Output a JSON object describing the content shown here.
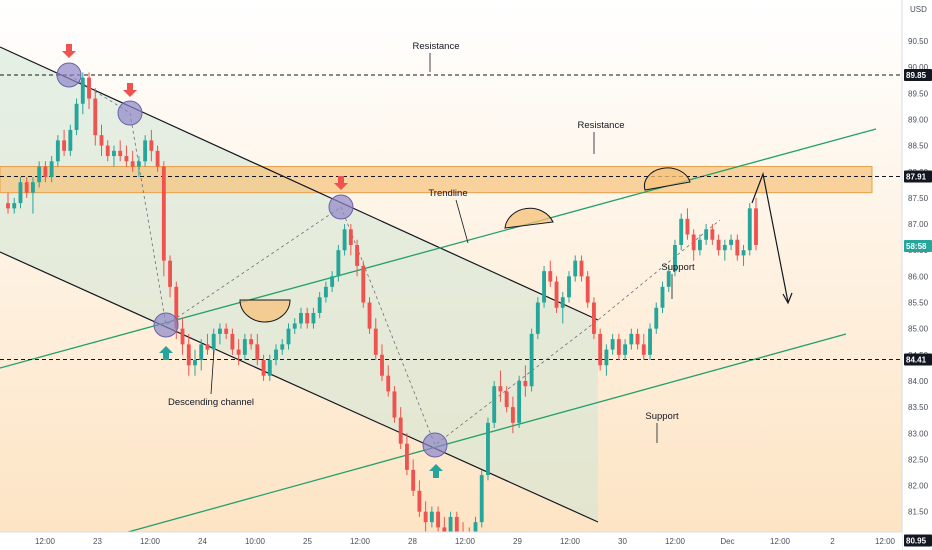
{
  "chart_data": {
    "type": "candlestick",
    "unit": "USD",
    "ylim": [
      78.9,
      91.6
    ],
    "y_ticks": [
      79.0,
      79.5,
      80.0,
      80.5,
      81.0,
      81.5,
      82.0,
      82.5,
      83.0,
      83.5,
      84.0,
      84.5,
      85.0,
      85.5,
      86.0,
      86.5,
      87.0,
      87.5,
      88.0,
      88.5,
      89.0,
      89.5,
      90.0,
      90.5,
      91.0,
      91.5
    ],
    "x_ticks": [
      "12:00",
      "23",
      "12:00",
      "24",
      "10:00",
      "25",
      "12:00",
      "28",
      "12:00",
      "29",
      "12:00",
      "30",
      "12:00",
      "Dec",
      "12:00",
      "2",
      "12:00"
    ],
    "price_labels": [
      {
        "value": 89.85,
        "text": "89.85",
        "color": "#131722"
      },
      {
        "value": 87.91,
        "text": "87.91",
        "color": "#131722"
      },
      {
        "value": 86.58,
        "text": "58:58",
        "color": "#26a69a"
      },
      {
        "value": 84.41,
        "text": "84.41",
        "color": "#131722"
      },
      {
        "value": 80.95,
        "text": "80.95",
        "color": "#131722"
      }
    ],
    "levels": [
      {
        "name": "resistance-upper",
        "value": 89.85,
        "label": "Resistance"
      },
      {
        "name": "resistance-zone",
        "value": 87.91,
        "label": "Resistance",
        "zone": [
          87.6,
          88.1
        ]
      },
      {
        "name": "support-upper",
        "value": 84.41,
        "label": "Support"
      },
      {
        "name": "support-lower",
        "value": 80.95,
        "label": "Support"
      }
    ],
    "annotations": [
      {
        "name": "trendline-label",
        "text": "Trendline"
      },
      {
        "name": "channel-label",
        "text": "Descending channel"
      }
    ],
    "colors": {
      "up": "#26a69a",
      "down": "#ef5350",
      "channel_line": "#131722",
      "trend_line": "#22a06b",
      "zone": "#f5c27a",
      "marker": "#8e86c8"
    },
    "candles": [
      [
        87.4,
        87.6,
        87.2,
        87.3
      ],
      [
        87.3,
        87.5,
        87.2,
        87.4
      ],
      [
        87.4,
        87.9,
        87.3,
        87.8
      ],
      [
        87.8,
        87.9,
        87.5,
        87.6
      ],
      [
        87.6,
        87.9,
        87.2,
        87.8
      ],
      [
        87.8,
        88.2,
        87.7,
        88.1
      ],
      [
        88.1,
        88.2,
        87.8,
        87.9
      ],
      [
        87.9,
        88.3,
        87.8,
        88.2
      ],
      [
        88.2,
        88.7,
        88.1,
        88.6
      ],
      [
        88.6,
        88.8,
        88.3,
        88.4
      ],
      [
        88.4,
        88.9,
        88.3,
        88.8
      ],
      [
        88.8,
        89.4,
        88.7,
        89.3
      ],
      [
        89.3,
        89.9,
        89.1,
        89.8
      ],
      [
        89.8,
        89.9,
        89.2,
        89.4
      ],
      [
        89.4,
        89.6,
        88.5,
        88.7
      ],
      [
        88.7,
        88.9,
        88.3,
        88.5
      ],
      [
        88.5,
        88.6,
        88.2,
        88.3
      ],
      [
        88.3,
        88.5,
        88.1,
        88.4
      ],
      [
        88.4,
        88.6,
        88.2,
        88.3
      ],
      [
        88.3,
        88.5,
        88.1,
        88.2
      ],
      [
        88.2,
        88.4,
        88.0,
        88.1
      ],
      [
        88.1,
        88.3,
        87.9,
        88.2
      ],
      [
        88.2,
        88.7,
        88.1,
        88.6
      ],
      [
        88.6,
        88.8,
        88.2,
        88.4
      ],
      [
        88.4,
        88.5,
        88.0,
        88.1
      ],
      [
        88.1,
        88.2,
        86.0,
        86.3
      ],
      [
        86.3,
        86.4,
        85.6,
        85.8
      ],
      [
        85.8,
        85.9,
        84.8,
        85.0
      ],
      [
        85.0,
        85.2,
        84.5,
        84.7
      ],
      [
        84.7,
        84.9,
        84.1,
        84.3
      ],
      [
        84.3,
        84.6,
        84.1,
        84.4
      ],
      [
        84.4,
        84.8,
        84.2,
        84.7
      ],
      [
        84.7,
        84.9,
        84.5,
        84.6
      ],
      [
        84.6,
        85.0,
        84.5,
        84.9
      ],
      [
        84.9,
        85.1,
        84.7,
        85.0
      ],
      [
        85.0,
        85.1,
        84.8,
        84.9
      ],
      [
        84.9,
        85.0,
        84.5,
        84.6
      ],
      [
        84.6,
        84.8,
        84.3,
        84.5
      ],
      [
        84.5,
        84.9,
        84.4,
        84.8
      ],
      [
        84.8,
        84.9,
        84.6,
        84.7
      ],
      [
        84.7,
        84.9,
        84.3,
        84.4
      ],
      [
        84.4,
        84.5,
        84.0,
        84.1
      ],
      [
        84.1,
        84.5,
        84.0,
        84.4
      ],
      [
        84.4,
        84.7,
        84.3,
        84.6
      ],
      [
        84.6,
        84.8,
        84.5,
        84.7
      ],
      [
        84.7,
        85.1,
        84.6,
        85.0
      ],
      [
        85.0,
        85.2,
        84.9,
        85.1
      ],
      [
        85.1,
        85.4,
        85.0,
        85.3
      ],
      [
        85.3,
        85.4,
        85.0,
        85.1
      ],
      [
        85.1,
        85.4,
        85.0,
        85.3
      ],
      [
        85.3,
        85.7,
        85.2,
        85.6
      ],
      [
        85.6,
        85.9,
        85.5,
        85.8
      ],
      [
        85.8,
        86.1,
        85.7,
        86.0
      ],
      [
        86.0,
        86.6,
        85.9,
        86.5
      ],
      [
        86.5,
        87.0,
        86.4,
        86.9
      ],
      [
        86.9,
        87.0,
        86.4,
        86.6
      ],
      [
        86.6,
        86.7,
        86.0,
        86.2
      ],
      [
        86.2,
        86.3,
        85.4,
        85.5
      ],
      [
        85.5,
        85.6,
        84.9,
        85.0
      ],
      [
        85.0,
        85.2,
        84.4,
        84.5
      ],
      [
        84.5,
        84.7,
        84.0,
        84.1
      ],
      [
        84.1,
        84.3,
        83.7,
        83.8
      ],
      [
        83.8,
        83.9,
        83.2,
        83.3
      ],
      [
        83.3,
        83.5,
        82.7,
        82.8
      ],
      [
        82.8,
        83.0,
        82.2,
        82.3
      ],
      [
        82.3,
        82.5,
        81.8,
        81.9
      ],
      [
        81.9,
        82.1,
        81.4,
        81.5
      ],
      [
        81.5,
        81.7,
        81.1,
        81.3
      ],
      [
        81.3,
        81.6,
        81.2,
        81.5
      ],
      [
        81.5,
        81.6,
        81.0,
        81.2
      ],
      [
        81.2,
        81.4,
        80.9,
        81.1
      ],
      [
        81.1,
        81.5,
        81.0,
        81.4
      ],
      [
        81.4,
        81.5,
        81.0,
        81.1
      ],
      [
        81.1,
        81.3,
        80.9,
        81.0
      ],
      [
        81.0,
        81.2,
        80.6,
        80.8
      ],
      [
        80.8,
        81.4,
        80.7,
        81.3
      ],
      [
        81.3,
        82.3,
        81.2,
        82.2
      ],
      [
        82.2,
        83.3,
        82.1,
        83.2
      ],
      [
        83.2,
        84.0,
        83.1,
        83.9
      ],
      [
        83.9,
        84.2,
        83.6,
        83.8
      ],
      [
        83.8,
        83.9,
        83.4,
        83.5
      ],
      [
        83.5,
        83.7,
        83.0,
        83.2
      ],
      [
        83.2,
        84.1,
        83.1,
        84.0
      ],
      [
        84.0,
        84.3,
        83.7,
        83.9
      ],
      [
        83.9,
        85.0,
        83.8,
        84.9
      ],
      [
        84.9,
        85.6,
        84.8,
        85.5
      ],
      [
        85.5,
        86.2,
        85.4,
        86.1
      ],
      [
        86.1,
        86.3,
        85.8,
        85.9
      ],
      [
        85.9,
        86.0,
        85.3,
        85.4
      ],
      [
        85.4,
        85.7,
        85.1,
        85.6
      ],
      [
        85.6,
        86.1,
        85.5,
        86.0
      ],
      [
        86.0,
        86.4,
        85.9,
        86.3
      ],
      [
        86.3,
        86.4,
        85.9,
        86.0
      ],
      [
        86.0,
        86.1,
        85.4,
        85.5
      ],
      [
        85.5,
        85.6,
        84.8,
        84.9
      ],
      [
        84.9,
        85.0,
        84.2,
        84.3
      ],
      [
        84.3,
        84.7,
        84.1,
        84.6
      ],
      [
        84.6,
        84.9,
        84.5,
        84.8
      ],
      [
        84.8,
        84.9,
        84.4,
        84.5
      ],
      [
        84.5,
        84.8,
        84.4,
        84.7
      ],
      [
        84.7,
        85.0,
        84.6,
        84.9
      ],
      [
        84.9,
        85.0,
        84.6,
        84.7
      ],
      [
        84.7,
        84.9,
        84.4,
        84.5
      ],
      [
        84.5,
        85.1,
        84.4,
        85.0
      ],
      [
        85.0,
        85.5,
        84.9,
        85.4
      ],
      [
        85.4,
        85.9,
        85.3,
        85.8
      ],
      [
        85.8,
        86.2,
        85.7,
        86.1
      ],
      [
        86.1,
        86.7,
        86.0,
        86.6
      ],
      [
        86.6,
        87.2,
        86.5,
        87.1
      ],
      [
        87.1,
        87.3,
        86.7,
        86.8
      ],
      [
        86.8,
        86.9,
        86.3,
        86.5
      ],
      [
        86.5,
        86.8,
        86.4,
        86.7
      ],
      [
        86.7,
        87.0,
        86.6,
        86.9
      ],
      [
        86.9,
        87.0,
        86.6,
        86.7
      ],
      [
        86.7,
        86.8,
        86.4,
        86.5
      ],
      [
        86.5,
        86.7,
        86.3,
        86.6
      ],
      [
        86.6,
        86.8,
        86.5,
        86.7
      ],
      [
        86.7,
        86.8,
        86.3,
        86.4
      ],
      [
        86.4,
        86.6,
        86.2,
        86.5
      ],
      [
        86.5,
        87.4,
        86.4,
        87.3
      ],
      [
        87.3,
        87.5,
        86.5,
        86.6
      ]
    ]
  }
}
